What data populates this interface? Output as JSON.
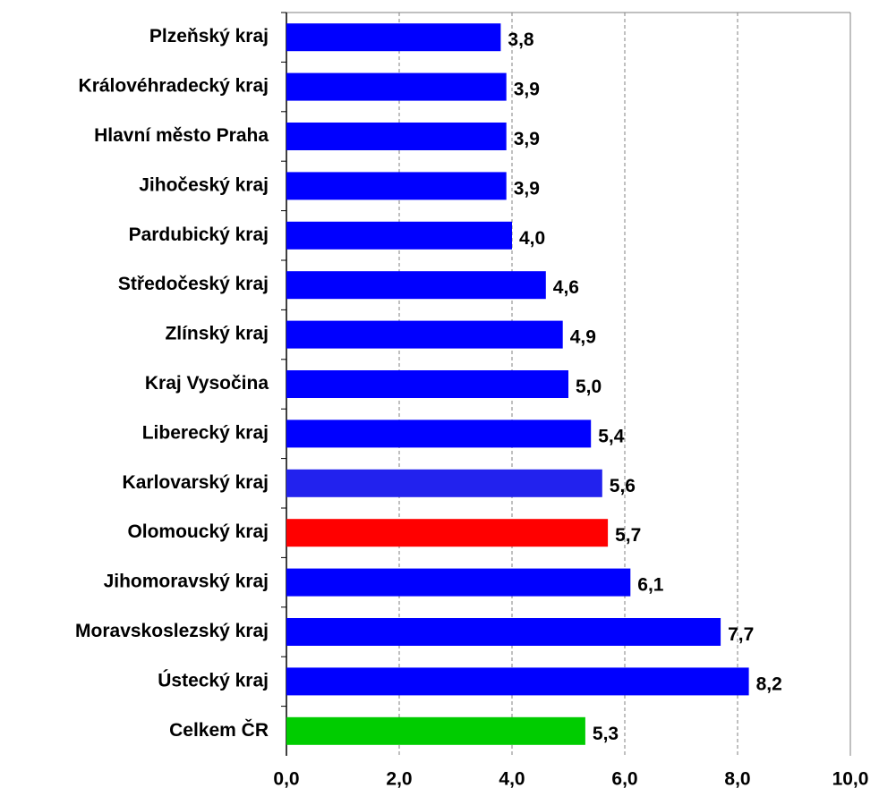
{
  "chart_data": {
    "type": "hbar",
    "categories": [
      "Plzeňský kraj",
      "Královéhradecký kraj",
      "Hlavní město Praha",
      "Jihočeský kraj",
      "Pardubický kraj",
      "Středočeský kraj",
      "Zlínský kraj",
      "Kraj Vysočina",
      "Liberecký kraj",
      "Karlovarský kraj",
      "Olomoucký kraj",
      "Jihomoravský kraj",
      "Moravskoslezský kraj",
      "Ústecký kraj",
      "Celkem ČR"
    ],
    "values": [
      3.8,
      3.9,
      3.9,
      3.9,
      4.0,
      4.6,
      4.9,
      5.0,
      5.4,
      5.6,
      5.7,
      6.1,
      7.7,
      8.2,
      5.3
    ],
    "value_labels": [
      "3,8",
      "3,9",
      "3,9",
      "3,9",
      "4,0",
      "4,6",
      "4,9",
      "5,0",
      "5,4",
      "5,6",
      "5,7",
      "6,1",
      "7,7",
      "8,2",
      "5,3"
    ],
    "colors": [
      "#0000ff",
      "#0000ff",
      "#0000ff",
      "#0000ff",
      "#0000ff",
      "#0000ff",
      "#0000ff",
      "#0000ff",
      "#0000ff",
      "#2222ee",
      "#ff0000",
      "#0000ff",
      "#0000ff",
      "#0000ff",
      "#00cc00"
    ],
    "xlim": [
      0,
      10
    ],
    "xticks": [
      {
        "value": 0,
        "label": "0,0"
      },
      {
        "value": 2,
        "label": "2,0"
      },
      {
        "value": 4,
        "label": "4,0"
      },
      {
        "value": 6,
        "label": "6,0"
      },
      {
        "value": 8,
        "label": "8,0"
      },
      {
        "value": 10,
        "label": "10,0"
      }
    ],
    "grid": true
  }
}
